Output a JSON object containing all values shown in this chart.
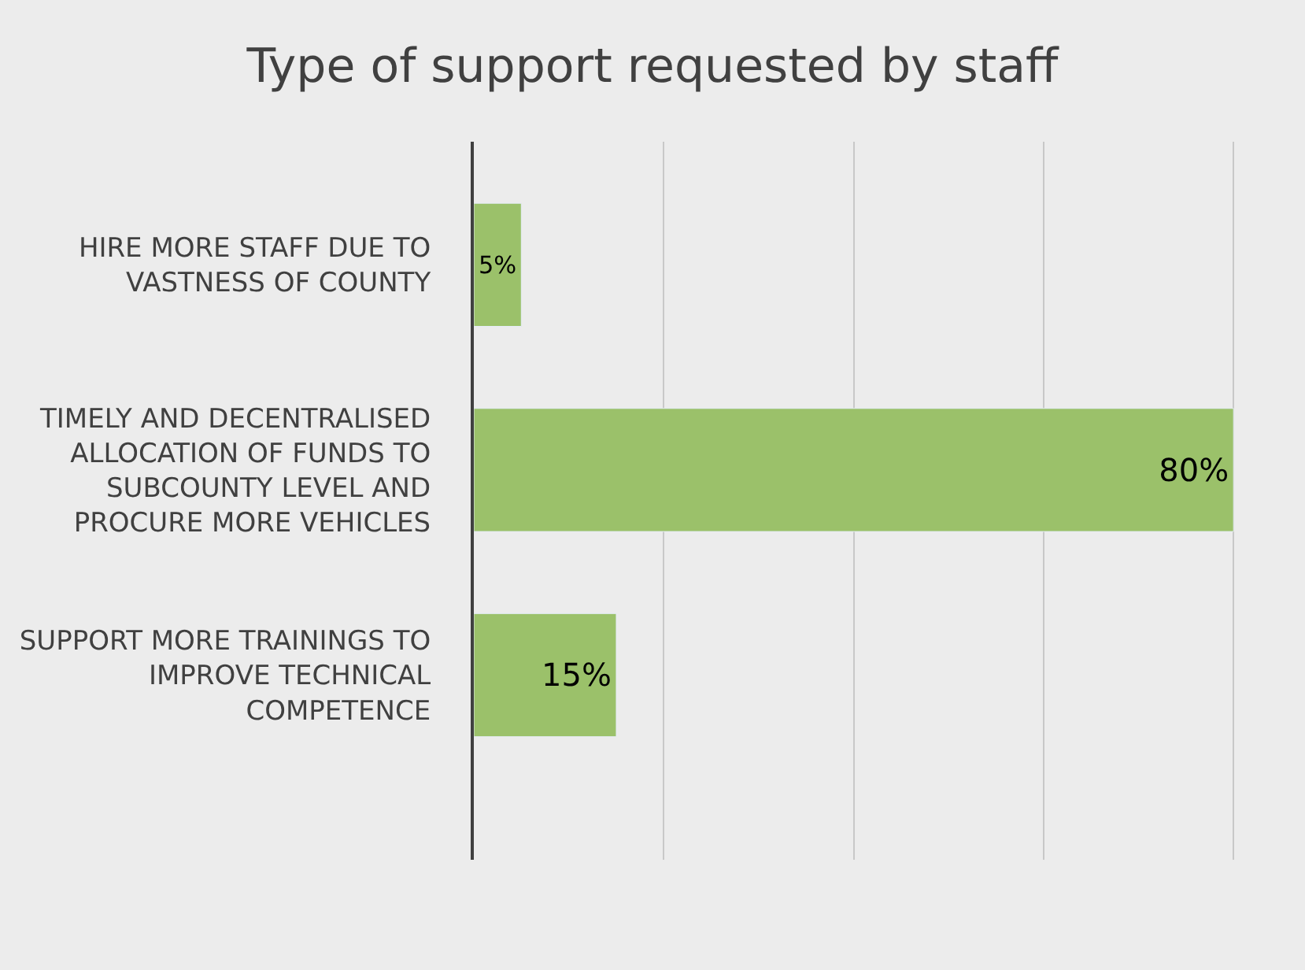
{
  "chart_data": {
    "type": "bar",
    "orientation": "horizontal",
    "title": "Type of support requested by staff",
    "categories": [
      "HIRE MORE STAFF DUE TO VASTNESS OF COUNTY",
      "TIMELY AND DECENTRALISED ALLOCATION OF FUNDS TO SUBCOUNTY LEVEL AND PROCURE MORE VEHICLES",
      "SUPPORT MORE TRAININGS TO IMPROVE TECHNICAL COMPETENCE"
    ],
    "values": [
      5,
      80,
      15
    ],
    "value_labels": [
      "5%",
      "80%",
      "15%"
    ],
    "color": "#9bc16a",
    "grid": "x",
    "legend": false
  }
}
